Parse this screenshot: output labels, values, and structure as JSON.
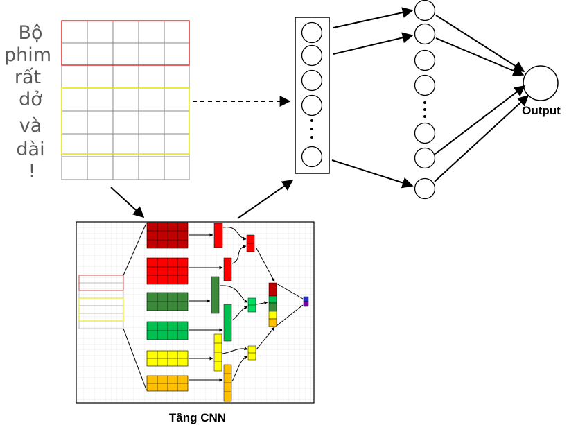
{
  "sentence_words": [
    "Bộ",
    "phim",
    "rất",
    "dở",
    "và",
    "dài",
    "!"
  ],
  "output_label": "Output",
  "cnn_caption": "Tầng CNN",
  "colors": {
    "window_red": "#e03030",
    "window_yellow": "#e6e600",
    "dark_red": "#c00000",
    "red": "#ff0000",
    "dark_green": "#3a8a3a",
    "green": "#00c050",
    "yellow": "#ffff00",
    "orange": "#ffc000",
    "blue": "#2030c0",
    "purple": "#7a00a8"
  },
  "icons": {
    "neuron": "circle-node",
    "dots": "vertical-ellipsis"
  }
}
